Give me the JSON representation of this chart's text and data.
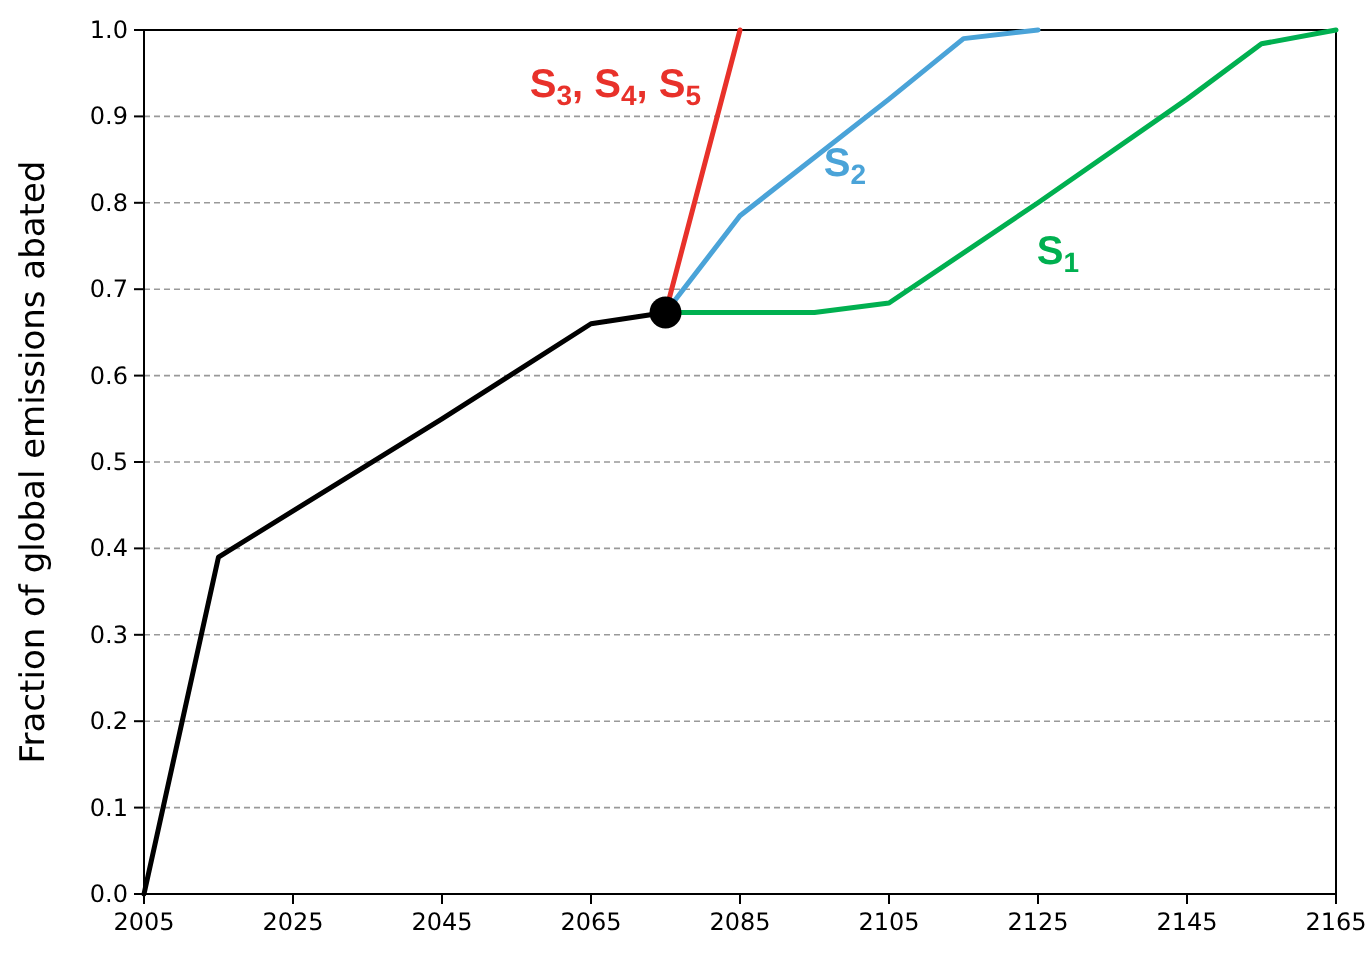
{
  "chart_data": {
    "type": "line",
    "ylabel": "Fraction of global emissions abated",
    "xlim": [
      2005,
      2165
    ],
    "xticks": [
      2005,
      2025,
      2045,
      2065,
      2085,
      2105,
      2125,
      2145,
      2165
    ],
    "ylim": [
      0,
      1
    ],
    "yticks": [
      {
        "value": 0,
        "label": "0.0"
      },
      0.1,
      0.2,
      0.3,
      0.4,
      0.5,
      0.6,
      0.7,
      0.8,
      0.9,
      {
        "value": 1,
        "label": "1.0"
      }
    ],
    "grid": "y",
    "series": [
      {
        "color": "#000000",
        "x": [
          2005,
          2015,
          2045,
          2065,
          2075
        ],
        "values": [
          0,
          0.39,
          0.55,
          0.66,
          0.673
        ]
      },
      {
        "name": "S$_{1}$",
        "color": "#00b050",
        "x": [
          2075,
          2095,
          2105,
          2125,
          2145,
          2155,
          2165
        ],
        "values": [
          0.673,
          0.673,
          0.684,
          0.8,
          0.92,
          0.984,
          1.0
        ]
      },
      {
        "name": "S$_{2}$",
        "color": "#4aa3d8",
        "x": [
          2075,
          2085,
          2105,
          2115,
          2125
        ],
        "values": [
          0.673,
          0.785,
          0.92,
          0.99,
          1.0
        ]
      },
      {
        "name": "S$_{3}$, S$_{4}$, S$_{5}$",
        "color": "#e8312a",
        "x": [
          2075,
          2085
        ],
        "values": [
          0.673,
          1.0
        ]
      },
      {
        "type": "scatter",
        "marker": "circle",
        "color": "#000000",
        "x": [
          2075
        ],
        "values": [
          0.673
        ]
      }
    ]
  }
}
